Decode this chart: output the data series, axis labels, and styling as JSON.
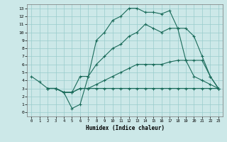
{
  "xlabel": "Humidex (Indice chaleur)",
  "bg_color": "#cce8e8",
  "grid_color": "#99cccc",
  "line_color": "#1a6b5a",
  "xlim": [
    -0.5,
    23.5
  ],
  "ylim": [
    -0.5,
    13.5
  ],
  "xticks": [
    0,
    1,
    2,
    3,
    4,
    5,
    6,
    7,
    8,
    9,
    10,
    11,
    12,
    13,
    14,
    15,
    16,
    17,
    18,
    19,
    20,
    21,
    22,
    23
  ],
  "yticks": [
    0,
    1,
    2,
    3,
    4,
    5,
    6,
    7,
    8,
    9,
    10,
    11,
    12,
    13
  ],
  "line1_x": [
    0,
    1,
    2,
    3,
    4,
    5,
    6,
    7,
    8,
    9,
    10,
    11,
    12,
    13,
    14,
    15,
    16,
    17,
    18,
    19,
    20,
    21,
    22,
    23
  ],
  "line1_y": [
    4.5,
    3.8,
    3.0,
    3.0,
    2.5,
    0.5,
    1.0,
    4.5,
    9.0,
    10.0,
    11.5,
    12.0,
    13.0,
    13.0,
    12.5,
    12.5,
    12.3,
    12.7,
    10.5,
    6.5,
    4.5,
    4.0,
    3.5,
    3.0
  ],
  "line2_x": [
    2,
    3,
    4,
    5,
    6,
    7,
    8,
    9,
    10,
    11,
    12,
    13,
    14,
    15,
    16,
    17,
    18,
    19,
    20,
    21,
    22,
    23
  ],
  "line2_y": [
    3.0,
    3.0,
    2.5,
    2.5,
    4.5,
    4.5,
    6.0,
    7.0,
    8.0,
    8.5,
    9.5,
    10.0,
    11.0,
    10.5,
    10.0,
    10.5,
    10.5,
    10.5,
    9.5,
    7.0,
    4.5,
    3.0
  ],
  "line3_x": [
    2,
    3,
    4,
    5,
    6,
    7,
    8,
    9,
    10,
    11,
    12,
    13,
    14,
    15,
    16,
    17,
    18,
    19,
    20,
    21,
    22,
    23
  ],
  "line3_y": [
    3.0,
    3.0,
    2.5,
    2.5,
    3.0,
    3.0,
    3.5,
    4.0,
    4.5,
    5.0,
    5.5,
    6.0,
    6.0,
    6.0,
    6.0,
    6.3,
    6.5,
    6.5,
    6.5,
    6.5,
    4.5,
    3.0
  ],
  "line4_x": [
    2,
    3,
    4,
    5,
    6,
    7,
    8,
    9,
    10,
    11,
    12,
    13,
    14,
    15,
    16,
    17,
    18,
    19,
    20,
    21,
    22,
    23
  ],
  "line4_y": [
    3.0,
    3.0,
    2.5,
    2.5,
    3.0,
    3.0,
    3.0,
    3.0,
    3.0,
    3.0,
    3.0,
    3.0,
    3.0,
    3.0,
    3.0,
    3.0,
    3.0,
    3.0,
    3.0,
    3.0,
    3.0,
    3.0
  ]
}
